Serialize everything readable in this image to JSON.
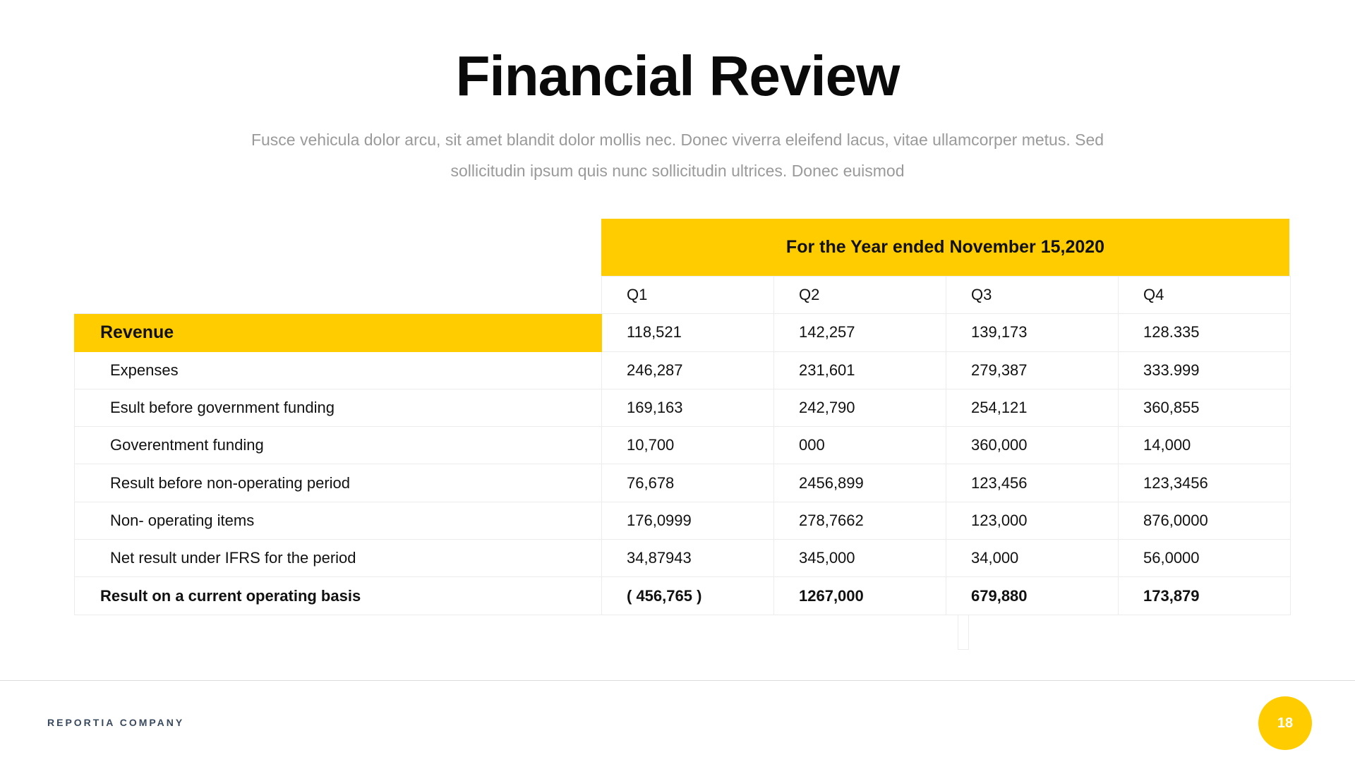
{
  "title": "Financial Review",
  "subtitle": "Fusce vehicula dolor arcu, sit amet blandit dolor mollis nec. Donec viverra eleifend lacus, vitae ullamcorper metus. Sed sollicitudin ipsum quis nunc sollicitudin ultrices. Donec euismod",
  "table": {
    "header": "For the Year ended November 15,2020",
    "quarters": [
      "Q1",
      "Q2",
      "Q3",
      "Q4"
    ],
    "rows": [
      {
        "label": "Revenue",
        "values": [
          "118,521",
          "142,257",
          "139,173",
          "128.335"
        ]
      },
      {
        "label": "Expenses",
        "values": [
          "246,287",
          "231,601",
          "279,387",
          "333.999"
        ]
      },
      {
        "label": "Esult before government funding",
        "values": [
          "169,163",
          "242,790",
          "254,121",
          "360,855"
        ]
      },
      {
        "label": "Goverentment funding",
        "values": [
          "10,700",
          "000",
          "360,000",
          "14,000"
        ]
      },
      {
        "label": "Result before non-operating period",
        "values": [
          "76,678",
          "2456,899",
          "123,456",
          "123,3456"
        ]
      },
      {
        "label": "Non- operating items",
        "values": [
          "176,0999",
          "278,7662",
          "123,000",
          "876,0000"
        ]
      },
      {
        "label": "Net result under IFRS for the period",
        "values": [
          "34,87943",
          "345,000",
          "34,000",
          "56,0000"
        ]
      },
      {
        "label": "Result on a current operating basis",
        "values": [
          "( 456,765 )",
          "1267,000",
          "679,880",
          "173,879"
        ]
      }
    ]
  },
  "footer": {
    "company": "REPORTIA COMPANY",
    "page": "18"
  },
  "colors": {
    "accent": "#FFCC00"
  }
}
